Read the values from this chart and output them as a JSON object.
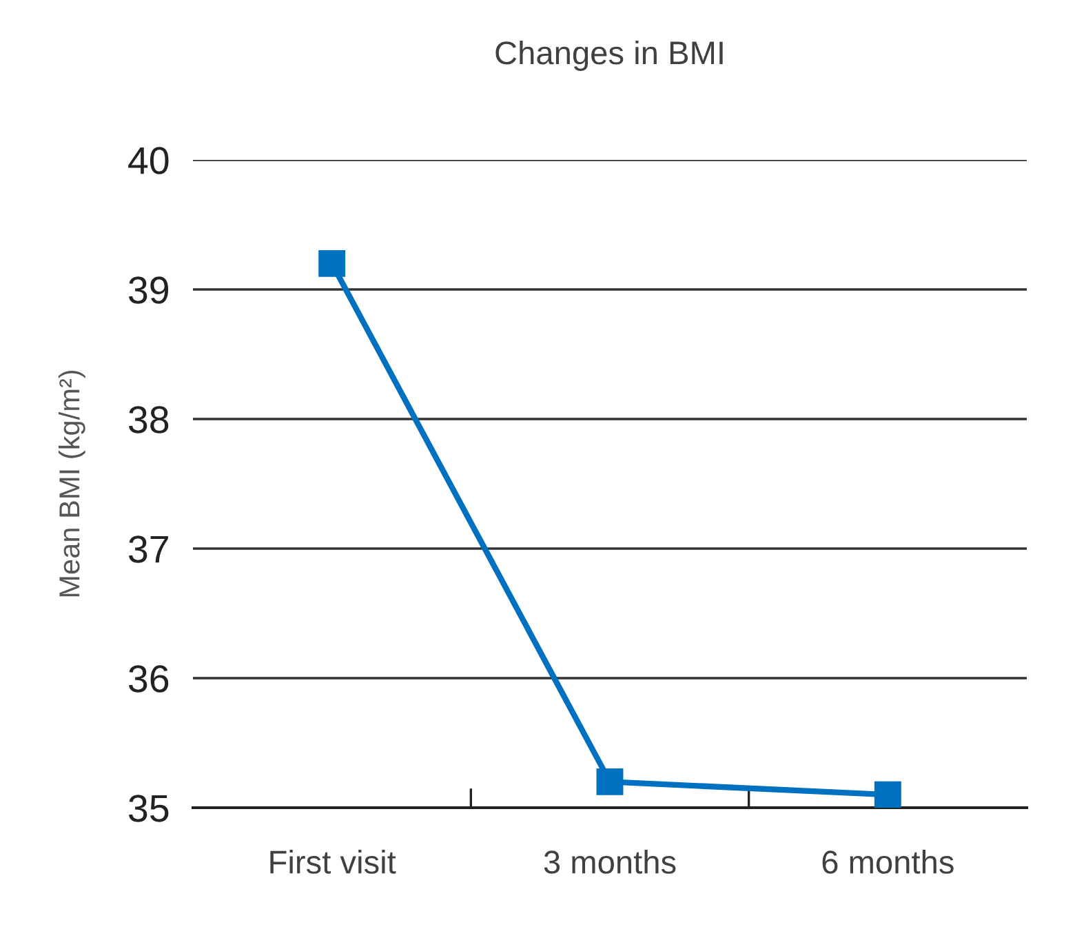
{
  "chart_data": {
    "type": "line",
    "title": "Changes in BMI",
    "ylabel": "Mean BMI (kg/m²)",
    "categories": [
      "First visit",
      "3 months",
      "6 months"
    ],
    "values": [
      39.2,
      35.2,
      35.1
    ],
    "color": "#0070c0",
    "ylim": [
      35,
      40
    ],
    "yticks": [
      35,
      36,
      37,
      38,
      39,
      40
    ],
    "grid": "y",
    "marker": "square",
    "line_style": "solid"
  }
}
